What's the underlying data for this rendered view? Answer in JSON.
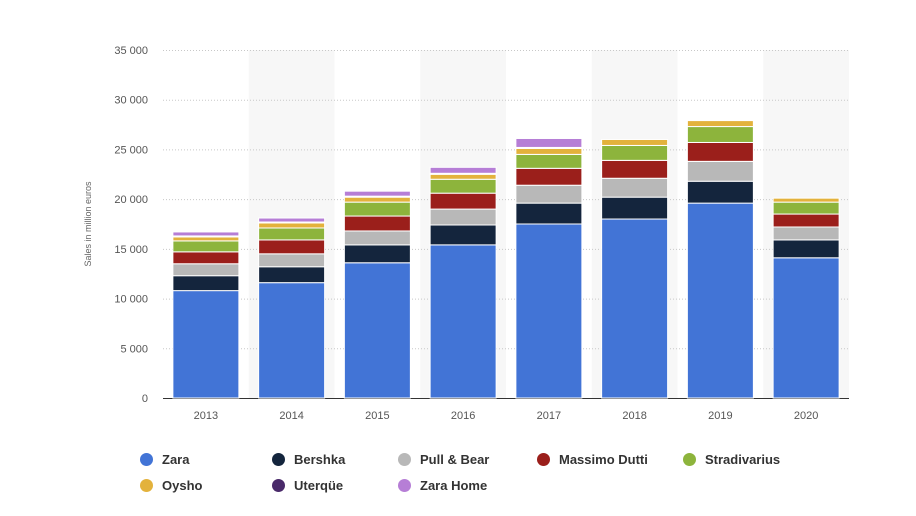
{
  "chart_data": {
    "type": "bar",
    "stacked": true,
    "categories": [
      "2013",
      "2014",
      "2015",
      "2016",
      "2017",
      "2018",
      "2019",
      "2020"
    ],
    "ylabel": "Sales in million euros",
    "ylim": [
      0,
      35000
    ],
    "yticks": [
      0,
      5000,
      10000,
      15000,
      20000,
      25000,
      30000,
      35000
    ],
    "ytick_labels": [
      "0",
      "5 000",
      "10 000",
      "15 000",
      "20 000",
      "25 000",
      "30 000",
      "35 000"
    ],
    "grid": true,
    "legend_position": "bottom",
    "series": [
      {
        "name": "Zara",
        "color": "#4274d6",
        "values": [
          10800,
          11600,
          13600,
          15400,
          17500,
          18000,
          19600,
          14100
        ]
      },
      {
        "name": "Bershka",
        "color": "#14253d",
        "values": [
          1500,
          1600,
          1800,
          2000,
          2100,
          2200,
          2200,
          1800
        ]
      },
      {
        "name": "Pull & Bear",
        "color": "#b8b8b8",
        "values": [
          1200,
          1300,
          1400,
          1600,
          1800,
          1900,
          2000,
          1300
        ]
      },
      {
        "name": "Massimo Dutti",
        "color": "#9b1f1b",
        "values": [
          1200,
          1400,
          1500,
          1600,
          1700,
          1800,
          1900,
          1300
        ]
      },
      {
        "name": "Stradivarius",
        "color": "#8db43c",
        "values": [
          1100,
          1200,
          1400,
          1400,
          1400,
          1500,
          1600,
          1200
        ]
      },
      {
        "name": "Oysho",
        "color": "#e3b23c",
        "values": [
          400,
          500,
          500,
          500,
          600,
          600,
          600,
          400
        ]
      },
      {
        "name": "Uterqüe",
        "color": "#4a2a6a",
        "values": [
          100,
          100,
          100,
          100,
          100,
          0,
          0,
          0
        ]
      },
      {
        "name": "Zara Home",
        "color": "#b67ed6",
        "values": [
          400,
          400,
          500,
          600,
          900,
          0,
          0,
          0
        ]
      }
    ]
  }
}
